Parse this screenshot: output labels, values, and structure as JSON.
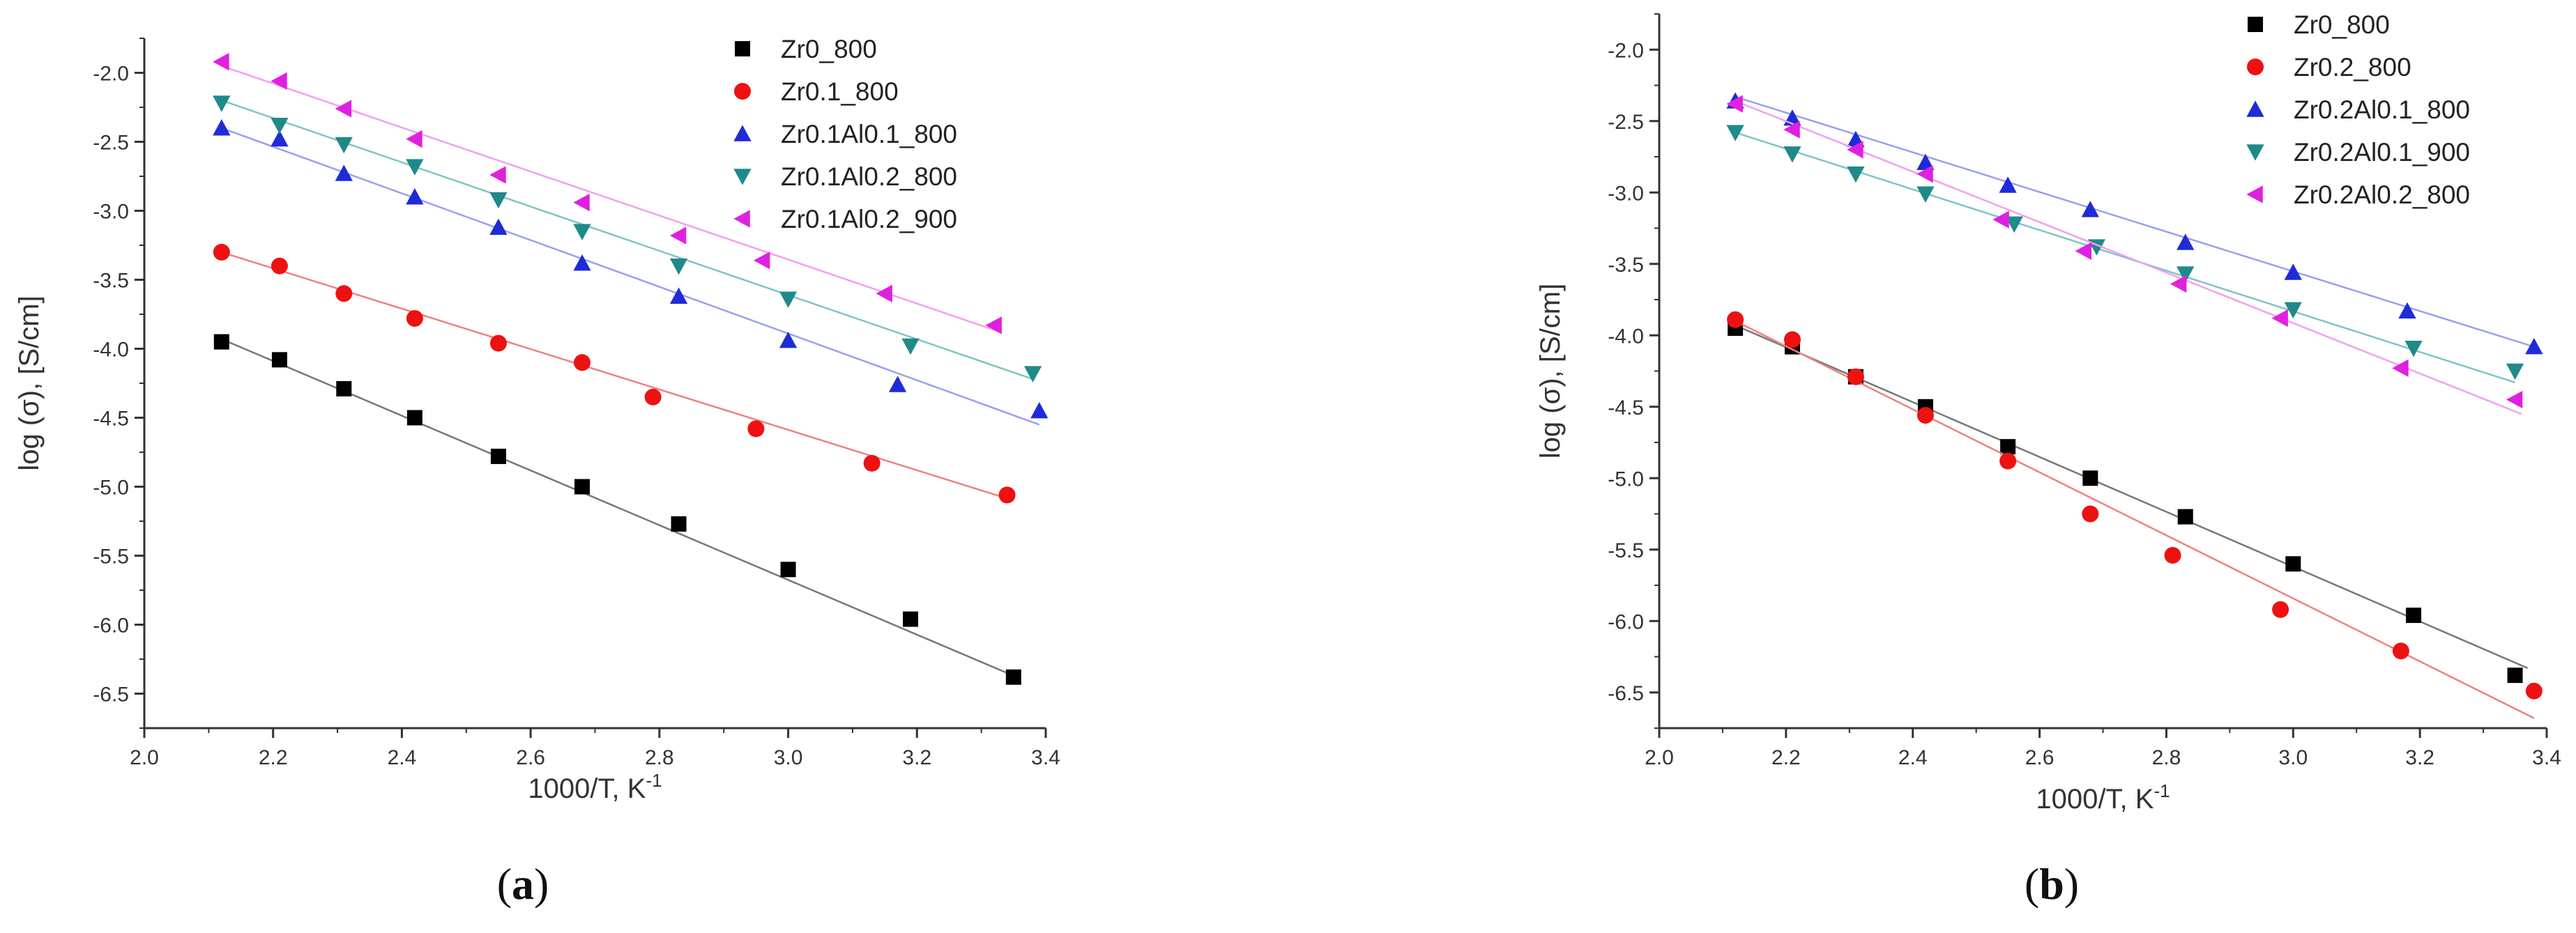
{
  "chart_data": [
    {
      "type": "scatter",
      "caption": "(a)",
      "xlabel": "1000/T, K",
      "xlabel_sup": "-1",
      "ylabel": "log (σ), [S/cm]",
      "xlim": [
        2.0,
        3.4
      ],
      "ylim": [
        -6.75,
        -1.75
      ],
      "xticks": [
        "2.0",
        "2.2",
        "2.4",
        "2.6",
        "2.8",
        "3.0",
        "3.2",
        "3.4"
      ],
      "yticks": [
        "-2.0",
        "-2.5",
        "-3.0",
        "-3.5",
        "-4.0",
        "-4.5",
        "-5.0",
        "-5.5",
        "-6.0",
        "-6.5"
      ],
      "legend_position": "top-right",
      "series": [
        {
          "name": "Zr0_800",
          "marker": "square",
          "color": "#000000",
          "line_color": "#777777",
          "points": [
            [
              2.12,
              -3.95
            ],
            [
              2.21,
              -4.08
            ],
            [
              2.31,
              -4.29
            ],
            [
              2.42,
              -4.5
            ],
            [
              2.55,
              -4.78
            ],
            [
              2.68,
              -5.0
            ],
            [
              2.83,
              -5.27
            ],
            [
              3.0,
              -5.6
            ],
            [
              3.19,
              -5.96
            ],
            [
              3.35,
              -6.38
            ]
          ],
          "fit": [
            [
              2.12,
              -3.93
            ],
            [
              3.35,
              -6.37
            ]
          ]
        },
        {
          "name": "Zr0.1_800",
          "marker": "circle",
          "color": "#ee1111",
          "line_color": "#f08080",
          "points": [
            [
              2.12,
              -3.3
            ],
            [
              2.21,
              -3.4
            ],
            [
              2.31,
              -3.6
            ],
            [
              2.42,
              -3.78
            ],
            [
              2.55,
              -3.96
            ],
            [
              2.68,
              -4.1
            ],
            [
              2.79,
              -4.35
            ],
            [
              2.95,
              -4.58
            ],
            [
              3.13,
              -4.83
            ],
            [
              3.34,
              -5.06
            ]
          ],
          "fit": [
            [
              2.12,
              -3.3
            ],
            [
              3.35,
              -5.1
            ]
          ]
        },
        {
          "name": "Zr0.1Al0.1_800",
          "marker": "triangle-up",
          "color": "#1f2bd6",
          "line_color": "#9a9ff0",
          "points": [
            [
              2.12,
              -2.4
            ],
            [
              2.21,
              -2.48
            ],
            [
              2.31,
              -2.73
            ],
            [
              2.42,
              -2.9
            ],
            [
              2.55,
              -3.12
            ],
            [
              2.68,
              -3.38
            ],
            [
              2.83,
              -3.62
            ],
            [
              3.0,
              -3.94
            ],
            [
              3.17,
              -4.26
            ],
            [
              3.39,
              -4.45
            ]
          ],
          "fit": [
            [
              2.12,
              -2.4
            ],
            [
              3.39,
              -4.55
            ]
          ]
        },
        {
          "name": "Zr0.1Al0.2_800",
          "marker": "triangle-down",
          "color": "#1f8a8a",
          "line_color": "#80c4c4",
          "points": [
            [
              2.12,
              -2.22
            ],
            [
              2.21,
              -2.38
            ],
            [
              2.31,
              -2.52
            ],
            [
              2.42,
              -2.68
            ],
            [
              2.55,
              -2.92
            ],
            [
              2.68,
              -3.15
            ],
            [
              2.83,
              -3.4
            ],
            [
              3.0,
              -3.64
            ],
            [
              3.19,
              -3.98
            ],
            [
              3.38,
              -4.18
            ]
          ],
          "fit": [
            [
              2.12,
              -2.2
            ],
            [
              3.38,
              -4.22
            ]
          ]
        },
        {
          "name": "Zr0.1Al0.2_900",
          "marker": "triangle-left",
          "color": "#e020e0",
          "line_color": "#f0a0f0",
          "points": [
            [
              2.12,
              -1.92
            ],
            [
              2.21,
              -2.06
            ],
            [
              2.31,
              -2.26
            ],
            [
              2.42,
              -2.48
            ],
            [
              2.55,
              -2.74
            ],
            [
              2.68,
              -2.94
            ],
            [
              2.83,
              -3.18
            ],
            [
              2.96,
              -3.36
            ],
            [
              3.15,
              -3.6
            ],
            [
              3.32,
              -3.83
            ]
          ],
          "fit": [
            [
              2.12,
              -1.95
            ],
            [
              3.33,
              -3.88
            ]
          ]
        }
      ]
    },
    {
      "type": "scatter",
      "caption": "(b)",
      "xlabel": "1000/T, K",
      "xlabel_sup": "-1",
      "ylabel": "log (σ), [S/cm]",
      "xlim": [
        2.0,
        3.4
      ],
      "ylim": [
        -6.75,
        -1.75
      ],
      "xticks": [
        "2.0",
        "2.2",
        "2.4",
        "2.6",
        "2.8",
        "3.0",
        "3.2",
        "3.4"
      ],
      "yticks": [
        "-2.0",
        "-2.5",
        "-3.0",
        "-3.5",
        "-4.0",
        "-4.5",
        "-5.0",
        "-5.5",
        "-6.0",
        "-6.5"
      ],
      "legend_position": "top-right",
      "series": [
        {
          "name": "Zr0_800",
          "marker": "square",
          "color": "#000000",
          "line_color": "#777777",
          "points": [
            [
              2.12,
              -3.95
            ],
            [
              2.21,
              -4.08
            ],
            [
              2.31,
              -4.29
            ],
            [
              2.42,
              -4.5
            ],
            [
              2.55,
              -4.78
            ],
            [
              2.68,
              -5.0
            ],
            [
              2.83,
              -5.27
            ],
            [
              3.0,
              -5.6
            ],
            [
              3.19,
              -5.96
            ],
            [
              3.35,
              -6.38
            ]
          ],
          "fit": [
            [
              2.12,
              -3.93
            ],
            [
              3.37,
              -6.33
            ]
          ]
        },
        {
          "name": "Zr0.2_800",
          "marker": "circle",
          "color": "#ee1111",
          "line_color": "#f08080",
          "points": [
            [
              2.12,
              -3.89
            ],
            [
              2.21,
              -4.03
            ],
            [
              2.31,
              -4.29
            ],
            [
              2.42,
              -4.56
            ],
            [
              2.55,
              -4.88
            ],
            [
              2.68,
              -5.25
            ],
            [
              2.81,
              -5.54
            ],
            [
              2.98,
              -5.92
            ],
            [
              3.17,
              -6.21
            ],
            [
              3.38,
              -6.49
            ]
          ],
          "fit": [
            [
              2.12,
              -3.9
            ],
            [
              3.38,
              -6.68
            ]
          ]
        },
        {
          "name": "Zr0.2Al0.1_800",
          "marker": "triangle-up",
          "color": "#1f2bd6",
          "line_color": "#9a9ff0",
          "points": [
            [
              2.12,
              -2.36
            ],
            [
              2.21,
              -2.48
            ],
            [
              2.31,
              -2.63
            ],
            [
              2.42,
              -2.79
            ],
            [
              2.55,
              -2.95
            ],
            [
              2.68,
              -3.12
            ],
            [
              2.83,
              -3.35
            ],
            [
              3.0,
              -3.56
            ],
            [
              3.18,
              -3.83
            ],
            [
              3.38,
              -4.08
            ]
          ],
          "fit": [
            [
              2.12,
              -2.33
            ],
            [
              3.38,
              -4.08
            ]
          ]
        },
        {
          "name": "Zr0.2Al0.1_900",
          "marker": "triangle-down",
          "color": "#1f8a8a",
          "line_color": "#80c4c4",
          "points": [
            [
              2.12,
              -2.58
            ],
            [
              2.21,
              -2.73
            ],
            [
              2.31,
              -2.87
            ],
            [
              2.42,
              -3.01
            ],
            [
              2.56,
              -3.22
            ],
            [
              2.69,
              -3.38
            ],
            [
              2.83,
              -3.57
            ],
            [
              3.0,
              -3.82
            ],
            [
              3.19,
              -4.09
            ],
            [
              3.35,
              -4.25
            ]
          ],
          "fit": [
            [
              2.12,
              -2.58
            ],
            [
              3.35,
              -4.33
            ]
          ]
        },
        {
          "name": "Zr0.2Al0.2_800",
          "marker": "triangle-left",
          "color": "#e020e0",
          "line_color": "#f0a0f0",
          "points": [
            [
              2.12,
              -2.38
            ],
            [
              2.21,
              -2.56
            ],
            [
              2.31,
              -2.7
            ],
            [
              2.42,
              -2.87
            ],
            [
              2.54,
              -3.19
            ],
            [
              2.67,
              -3.41
            ],
            [
              2.82,
              -3.64
            ],
            [
              2.98,
              -3.88
            ],
            [
              3.17,
              -4.23
            ],
            [
              3.35,
              -4.45
            ]
          ],
          "fit": [
            [
              2.12,
              -2.36
            ],
            [
              3.36,
              -4.55
            ]
          ]
        }
      ]
    }
  ]
}
